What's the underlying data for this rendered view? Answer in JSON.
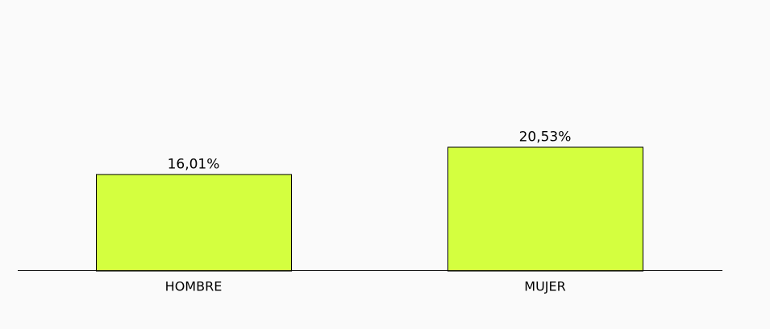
{
  "chart_data": {
    "type": "bar",
    "categories": [
      "HOMBRE",
      "MUJER"
    ],
    "values": [
      16.01,
      20.53
    ],
    "value_labels": [
      "16,01%",
      "20,53%"
    ],
    "ylim": [
      0,
      25
    ],
    "grid": false,
    "legend": "none",
    "title": "",
    "xlabel": "",
    "ylabel": "",
    "colors": {
      "bar_fill": "#d4ff3f",
      "bar_stroke": "#000000",
      "background": "#fafafa",
      "axis": "#000000"
    }
  }
}
